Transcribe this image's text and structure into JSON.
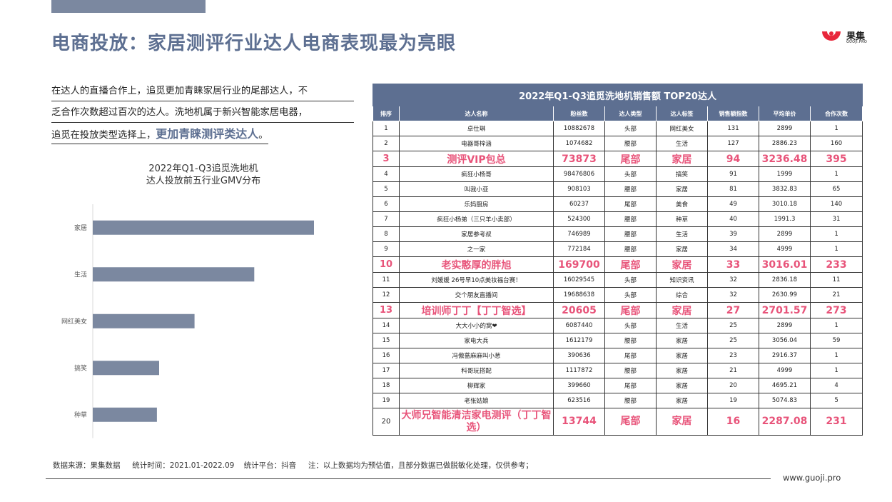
{
  "header": {
    "title": "电商投放：家居测评行业达人电商表现最为亮眼",
    "logo_name": "果集",
    "logo_sub": "GUOJI.PRO"
  },
  "intro": {
    "line1": "在达人的直播合作上，追觅更加青睐家居行业的尾部达人，不",
    "line2": "乏合作次数超过百次的达人。洗地机属于新兴智能家居电器，",
    "line3": "追觅在投放类型选择上，",
    "highlight": "更加青睐测评类达人",
    "tail": "。"
  },
  "chart_data": {
    "type": "bar",
    "orientation": "horizontal",
    "title": "2022年Q1-Q3追觅洗地机",
    "subtitle": "达人投放前五行业GMV分布",
    "categories": [
      "家居",
      "生活",
      "网红美女",
      "搞笑",
      "种草"
    ],
    "values": [
      100,
      73,
      46,
      30,
      29
    ],
    "xlabel": "",
    "ylabel": "",
    "bar_color": "#7b88a0",
    "grid": false
  },
  "table": {
    "caption": "2022年Q1-Q3追觅洗地机销售额 TOP20达人",
    "columns": [
      "排序",
      "达人名称",
      "粉丝数",
      "达人类型",
      "达人标签",
      "销售额指数",
      "平均单价",
      "合作次数"
    ],
    "rows": [
      {
        "rank": "1",
        "name": "卓仕琳",
        "fans": "10882678",
        "type": "头部",
        "tag": "网红美女",
        "index": "131",
        "price": "2899",
        "coop": "1",
        "hl": false
      },
      {
        "rank": "2",
        "name": "电器哥梓涵",
        "fans": "1074682",
        "type": "腰部",
        "tag": "生活",
        "index": "127",
        "price": "2886.23",
        "coop": "160",
        "hl": false
      },
      {
        "rank": "3",
        "name": "测评VIP包总",
        "fans": "73873",
        "type": "尾部",
        "tag": "家居",
        "index": "94",
        "price": "3236.48",
        "coop": "395",
        "hl": true
      },
      {
        "rank": "4",
        "name": "疯狂小杨哥",
        "fans": "98476806",
        "type": "头部",
        "tag": "搞笑",
        "index": "91",
        "price": "1999",
        "coop": "1",
        "hl": false
      },
      {
        "rank": "5",
        "name": "叫我小亚",
        "fans": "908103",
        "type": "腰部",
        "tag": "家居",
        "index": "81",
        "price": "3832.83",
        "coop": "65",
        "hl": false
      },
      {
        "rank": "6",
        "name": "乐妈厨房",
        "fans": "60237",
        "type": "尾部",
        "tag": "美食",
        "index": "49",
        "price": "3010.18",
        "coop": "140",
        "hl": false
      },
      {
        "rank": "7",
        "name": "疯狂小杨弟（三只羊小卖部）",
        "fans": "524300",
        "type": "腰部",
        "tag": "种草",
        "index": "40",
        "price": "1991.3",
        "coop": "31",
        "hl": false
      },
      {
        "rank": "8",
        "name": "家居参考叔",
        "fans": "746989",
        "type": "腰部",
        "tag": "生活",
        "index": "39",
        "price": "2899",
        "coop": "1",
        "hl": false
      },
      {
        "rank": "9",
        "name": "之一家",
        "fans": "772184",
        "type": "腰部",
        "tag": "家居",
        "index": "34",
        "price": "4999",
        "coop": "1",
        "hl": false
      },
      {
        "rank": "10",
        "name": "老实憨厚的胖旭",
        "fans": "169700",
        "type": "尾部",
        "tag": "家居",
        "index": "33",
        "price": "3016.01",
        "coop": "233",
        "hl": true
      },
      {
        "rank": "11",
        "name": "刘媛媛 26号早10点美妆福台赛！",
        "fans": "16029545",
        "type": "头部",
        "tag": "知识资讯",
        "index": "32",
        "price": "2836.18",
        "coop": "11",
        "hl": false
      },
      {
        "rank": "12",
        "name": "交个朋友直播间",
        "fans": "19688638",
        "type": "头部",
        "tag": "综合",
        "index": "32",
        "price": "2630.99",
        "coop": "21",
        "hl": false
      },
      {
        "rank": "13",
        "name": "培训师丁丁【丁丁智选】",
        "fans": "20605",
        "type": "尾部",
        "tag": "家居",
        "index": "27",
        "price": "2701.57",
        "coop": "273",
        "hl": true
      },
      {
        "rank": "14",
        "name": "大大小小的窝❤",
        "fans": "6087440",
        "type": "头部",
        "tag": "生活",
        "index": "25",
        "price": "2899",
        "coop": "1",
        "hl": false
      },
      {
        "rank": "15",
        "name": "家电大兵",
        "fans": "1612179",
        "type": "腰部",
        "tag": "家居",
        "index": "25",
        "price": "3056.04",
        "coop": "59",
        "hl": false
      },
      {
        "rank": "16",
        "name": "冯傲蔷麻麻叫小葱",
        "fans": "390636",
        "type": "尾部",
        "tag": "家居",
        "index": "23",
        "price": "2916.37",
        "coop": "1",
        "hl": false
      },
      {
        "rank": "17",
        "name": "科哥玩搭配",
        "fans": "1117872",
        "type": "腰部",
        "tag": "家居",
        "index": "21",
        "price": "4999",
        "coop": "1",
        "hl": false
      },
      {
        "rank": "18",
        "name": "柳辉家",
        "fans": "399660",
        "type": "尾部",
        "tag": "家居",
        "index": "20",
        "price": "4695.21",
        "coop": "4",
        "hl": false
      },
      {
        "rank": "19",
        "name": "老张姑娘",
        "fans": "623516",
        "type": "腰部",
        "tag": "家居",
        "index": "19",
        "price": "5074.83",
        "coop": "5",
        "hl": false
      },
      {
        "rank": "20",
        "name": "大师兄智能清洁家电测评（丁丁智选）",
        "fans": "13744",
        "type": "尾部",
        "tag": "家居",
        "index": "16",
        "price": "2287.08",
        "coop": "231",
        "hl": true
      }
    ]
  },
  "footer": {
    "text": "数据来源：果集数据     统计时间：2021.01-2022.09    统计平台：抖音     注：以上数据均为预估值，且部分数据已做脱敏化处理，仅供参考；",
    "site": "www.guoji.pro"
  }
}
